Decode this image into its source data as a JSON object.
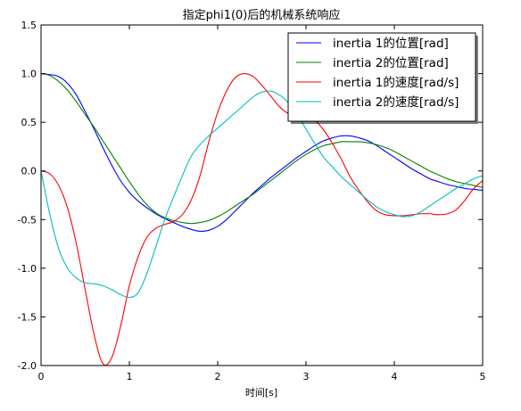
{
  "chart_data": {
    "type": "line",
    "title": "指定phi1(0)后的机械系统响应",
    "xlabel": "时间[s]",
    "ylabel": "",
    "xlim": [
      0,
      5
    ],
    "ylim": [
      -2.0,
      1.5
    ],
    "xticks": [
      "0",
      "1",
      "2",
      "3",
      "4",
      "5"
    ],
    "yticks": [
      "-2.0",
      "-1.5",
      "-1.0",
      "-0.5",
      "0.0",
      "0.5",
      "1.0",
      "1.5"
    ],
    "grid": false,
    "legend_position": "top-right",
    "x": [
      0,
      0.1,
      0.2,
      0.3,
      0.4,
      0.5,
      0.6,
      0.7,
      0.8,
      0.9,
      1.0,
      1.1,
      1.2,
      1.3,
      1.4,
      1.5,
      1.6,
      1.7,
      1.8,
      1.9,
      2.0,
      2.1,
      2.2,
      2.3,
      2.4,
      2.5,
      2.6,
      2.7,
      2.8,
      2.9,
      3.0,
      3.1,
      3.2,
      3.3,
      3.4,
      3.5,
      3.6,
      3.7,
      3.8,
      3.9,
      4.0,
      4.1,
      4.2,
      4.3,
      4.4,
      4.5,
      4.6,
      4.7,
      4.8,
      4.9,
      5.0
    ],
    "series": [
      {
        "name": "inertia 1的位置[rad]",
        "color": "#0000ff",
        "values": [
          1.0,
          0.99,
          0.97,
          0.9,
          0.78,
          0.61,
          0.43,
          0.24,
          0.06,
          -0.1,
          -0.22,
          -0.31,
          -0.38,
          -0.44,
          -0.49,
          -0.53,
          -0.57,
          -0.6,
          -0.62,
          -0.61,
          -0.57,
          -0.5,
          -0.41,
          -0.32,
          -0.23,
          -0.15,
          -0.07,
          0.0,
          0.07,
          0.14,
          0.2,
          0.26,
          0.31,
          0.34,
          0.36,
          0.36,
          0.34,
          0.31,
          0.26,
          0.2,
          0.14,
          0.08,
          0.02,
          -0.03,
          -0.08,
          -0.11,
          -0.14,
          -0.16,
          -0.18,
          -0.19,
          -0.2
        ]
      },
      {
        "name": "inertia 2的位置[rad]",
        "color": "#008000",
        "values": [
          1.0,
          0.98,
          0.92,
          0.83,
          0.71,
          0.58,
          0.45,
          0.31,
          0.17,
          0.03,
          -0.11,
          -0.24,
          -0.35,
          -0.43,
          -0.48,
          -0.51,
          -0.53,
          -0.54,
          -0.53,
          -0.51,
          -0.47,
          -0.42,
          -0.36,
          -0.3,
          -0.24,
          -0.17,
          -0.1,
          -0.03,
          0.04,
          0.11,
          0.17,
          0.22,
          0.26,
          0.28,
          0.3,
          0.3,
          0.3,
          0.29,
          0.27,
          0.24,
          0.2,
          0.15,
          0.1,
          0.05,
          0.0,
          -0.04,
          -0.08,
          -0.11,
          -0.13,
          -0.15,
          -0.17
        ]
      },
      {
        "name": "inertia 1的速度[rad/s]",
        "color": "#ff0000",
        "values": [
          0.0,
          -0.03,
          -0.15,
          -0.38,
          -0.75,
          -1.22,
          -1.68,
          -1.98,
          -1.92,
          -1.6,
          -1.18,
          -0.88,
          -0.68,
          -0.59,
          -0.55,
          -0.52,
          -0.45,
          -0.3,
          -0.05,
          0.3,
          0.6,
          0.82,
          0.96,
          1.0,
          0.97,
          0.88,
          0.77,
          0.66,
          0.59,
          0.57,
          0.56,
          0.52,
          0.42,
          0.28,
          0.12,
          -0.06,
          -0.2,
          -0.32,
          -0.41,
          -0.45,
          -0.46,
          -0.46,
          -0.45,
          -0.44,
          -0.44,
          -0.45,
          -0.44,
          -0.4,
          -0.3,
          -0.18,
          -0.1
        ]
      },
      {
        "name": "inertia 2的速度[rad/s]",
        "color": "#00bfbf",
        "values": [
          0.0,
          -0.45,
          -0.8,
          -1.0,
          -1.1,
          -1.15,
          -1.16,
          -1.18,
          -1.22,
          -1.27,
          -1.3,
          -1.25,
          -1.05,
          -0.78,
          -0.5,
          -0.27,
          -0.05,
          0.15,
          0.27,
          0.36,
          0.44,
          0.52,
          0.6,
          0.68,
          0.76,
          0.81,
          0.82,
          0.78,
          0.7,
          0.58,
          0.43,
          0.28,
          0.14,
          0.04,
          -0.06,
          -0.14,
          -0.22,
          -0.3,
          -0.37,
          -0.42,
          -0.45,
          -0.47,
          -0.46,
          -0.42,
          -0.36,
          -0.3,
          -0.24,
          -0.18,
          -0.13,
          -0.08,
          -0.05
        ]
      }
    ]
  }
}
